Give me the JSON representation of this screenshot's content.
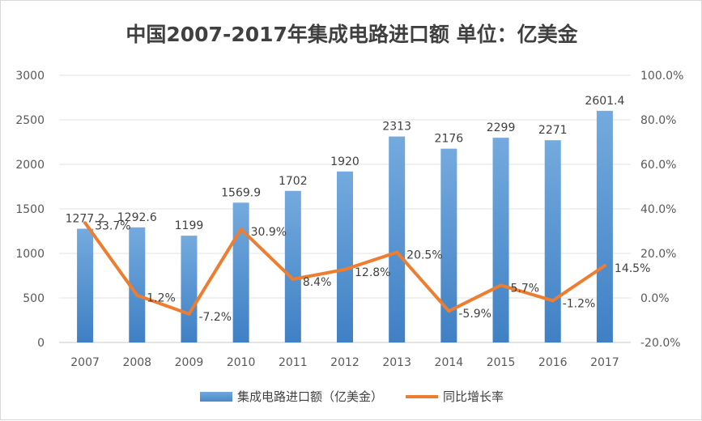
{
  "chart_data": {
    "type": "bar+line",
    "title": "中国2007-2017年集成电路进口额 单位：亿美金",
    "categories": [
      "2007",
      "2008",
      "2009",
      "2010",
      "2011",
      "2012",
      "2013",
      "2014",
      "2015",
      "2016",
      "2017"
    ],
    "series": [
      {
        "name": "集成电路进口额（亿美金）",
        "type": "bar",
        "axis": "left",
        "color": "#5b9bd5",
        "values": [
          1277.2,
          1292.6,
          1199,
          1569.9,
          1702,
          1920,
          2313,
          2176,
          2299,
          2271,
          2601.4
        ],
        "labels": [
          "1277.2",
          "1292.6",
          "1199",
          "1569.9",
          "1702",
          "1920",
          "2313",
          "2176",
          "2299",
          "2271",
          "2601.4"
        ]
      },
      {
        "name": "同比增长率",
        "type": "line",
        "axis": "right",
        "color": "#ed7d31",
        "values": [
          33.7,
          1.2,
          -7.2,
          30.9,
          8.4,
          12.8,
          20.5,
          -5.9,
          5.7,
          -1.2,
          14.5
        ],
        "labels": [
          "33.7%",
          "1.2%",
          "-7.2%",
          "30.9%",
          "8.4%",
          "12.8%",
          "20.5%",
          "-5.9%",
          "5.7%",
          "-1.2%",
          "14.5%"
        ]
      }
    ],
    "ylim_left": [
      0,
      3000
    ],
    "yticks_left": [
      "0",
      "500",
      "1000",
      "1500",
      "2000",
      "2500",
      "3000"
    ],
    "ylim_right": [
      -20,
      100
    ],
    "yticks_right": [
      "-20.0%",
      "0.0%",
      "20.0%",
      "40.0%",
      "60.0%",
      "80.0%",
      "100.0%"
    ],
    "grid": true,
    "legend": "bottom"
  }
}
